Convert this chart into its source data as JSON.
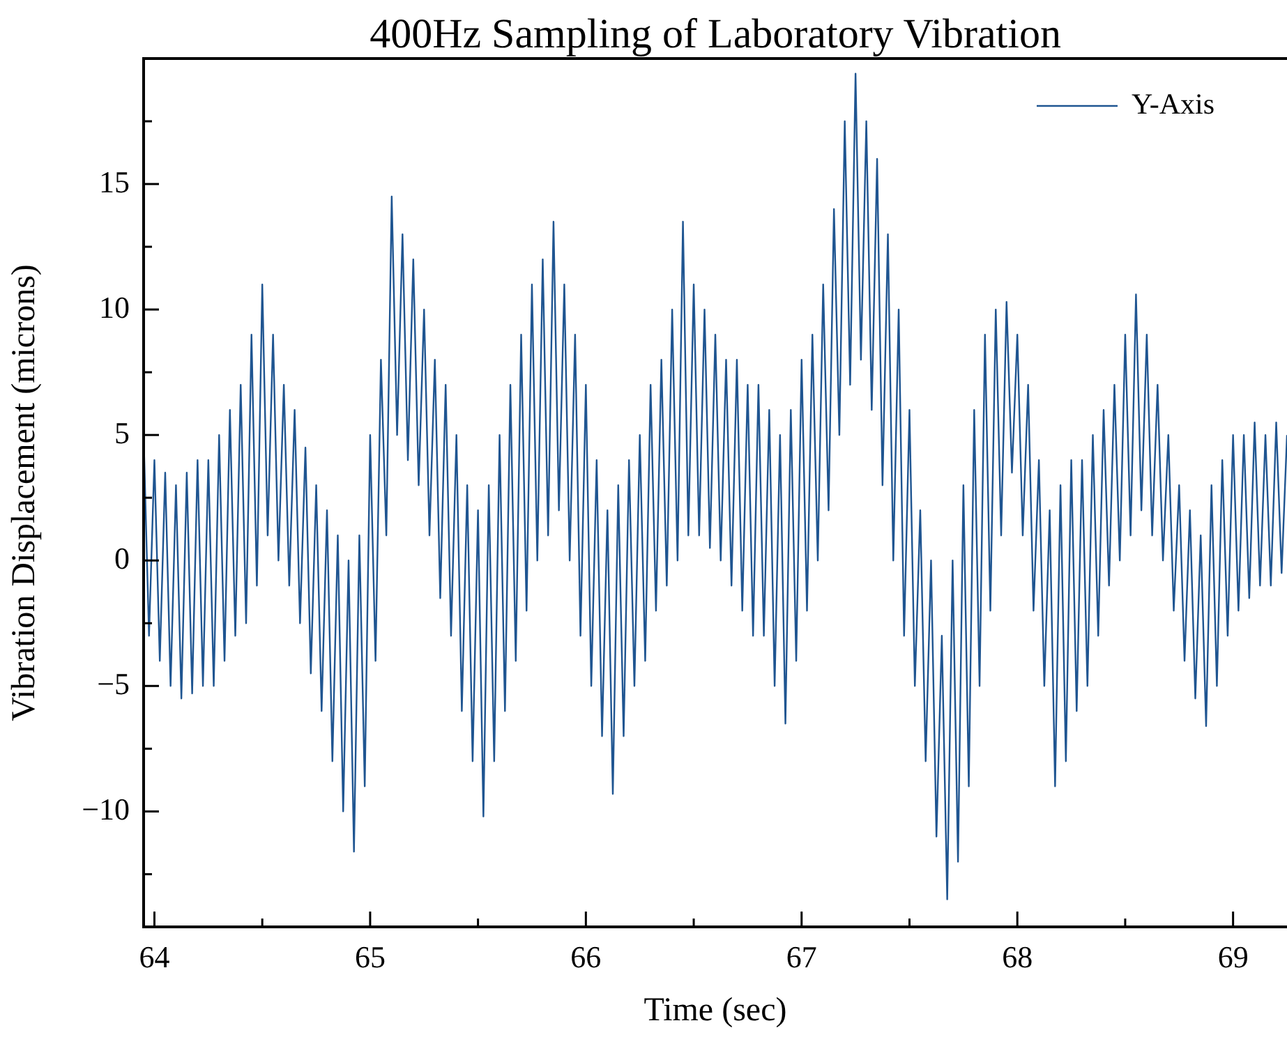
{
  "chart_data": {
    "type": "line",
    "title": "400Hz Sampling of Laboratory Vibration",
    "xlabel": "Time (sec)",
    "ylabel": "Vibration Displacement (microns)",
    "legend": "top right",
    "grid": false,
    "xlim": [
      63.95,
      69.25
    ],
    "xticks": [
      64,
      {
        "value": 64.5,
        "label": null
      },
      65,
      {
        "value": 65.5,
        "label": null
      },
      66,
      {
        "value": 66.5,
        "label": null
      },
      67,
      {
        "value": 67.5,
        "label": null
      },
      68,
      {
        "value": 68.5,
        "label": null
      },
      69
    ],
    "ylim": [
      -14.6,
      20
    ],
    "yticks": [
      {
        "value": -12.5,
        "label": null
      },
      -10,
      {
        "value": -7.5,
        "label": null
      },
      -5,
      {
        "value": -2.5,
        "label": null
      },
      0,
      {
        "value": 2.5,
        "label": null
      },
      5,
      {
        "value": 7.5,
        "label": null
      },
      10,
      {
        "value": 12.5,
        "label": null
      },
      15,
      {
        "value": 17.5,
        "label": null
      }
    ],
    "series": [
      {
        "name": "Y-Axis",
        "color": "#1f5591",
        "x": [
          63.95,
          63.975,
          64,
          64.025,
          64.05,
          64.075,
          64.1,
          64.125,
          64.15,
          64.175,
          64.2,
          64.225,
          64.25,
          64.275,
          64.3,
          64.325,
          64.35,
          64.375,
          64.4,
          64.425,
          64.45,
          64.475,
          64.5,
          64.525,
          64.55,
          64.575,
          64.6,
          64.625,
          64.65,
          64.675,
          64.7,
          64.725,
          64.75,
          64.775,
          64.8,
          64.825,
          64.85,
          64.875,
          64.9,
          64.925,
          64.95,
          64.975,
          65,
          65.025,
          65.05,
          65.075,
          65.1,
          65.125,
          65.15,
          65.175,
          65.2,
          65.225,
          65.25,
          65.275,
          65.3,
          65.325,
          65.35,
          65.375,
          65.4,
          65.425,
          65.45,
          65.475,
          65.5,
          65.525,
          65.55,
          65.575,
          65.6,
          65.625,
          65.65,
          65.675,
          65.7,
          65.725,
          65.75,
          65.775,
          65.8,
          65.825,
          65.85,
          65.875,
          65.9,
          65.925,
          65.95,
          65.975,
          66,
          66.025,
          66.05,
          66.075,
          66.1,
          66.125,
          66.15,
          66.175,
          66.2,
          66.225,
          66.25,
          66.275,
          66.3,
          66.325,
          66.35,
          66.375,
          66.4,
          66.425,
          66.45,
          66.475,
          66.5,
          66.525,
          66.55,
          66.575,
          66.6,
          66.625,
          66.65,
          66.675,
          66.7,
          66.725,
          66.75,
          66.775,
          66.8,
          66.825,
          66.85,
          66.875,
          66.9,
          66.925,
          66.95,
          66.975,
          67,
          67.025,
          67.05,
          67.075,
          67.1,
          67.125,
          67.15,
          67.175,
          67.2,
          67.225,
          67.25,
          67.275,
          67.3,
          67.325,
          67.35,
          67.375,
          67.4,
          67.425,
          67.45,
          67.475,
          67.5,
          67.525,
          67.55,
          67.575,
          67.6,
          67.625,
          67.65,
          67.675,
          67.7,
          67.725,
          67.75,
          67.775,
          67.8,
          67.825,
          67.85,
          67.875,
          67.9,
          67.925,
          67.95,
          67.975,
          68,
          68.025,
          68.05,
          68.075,
          68.1,
          68.125,
          68.15,
          68.175,
          68.2,
          68.225,
          68.25,
          68.275,
          68.3,
          68.325,
          68.35,
          68.375,
          68.4,
          68.425,
          68.45,
          68.475,
          68.5,
          68.525,
          68.55,
          68.575,
          68.6,
          68.625,
          68.65,
          68.675,
          68.7,
          68.725,
          68.75,
          68.775,
          68.8,
          68.825,
          68.85,
          68.875,
          68.9,
          68.925,
          68.95,
          68.975,
          69,
          69.025,
          69.05,
          69.075,
          69.1,
          69.125,
          69.15,
          69.175,
          69.2,
          69.225,
          69.25
        ],
        "values": [
          5,
          -3,
          4,
          -4,
          3.5,
          -5,
          3,
          -5.5,
          3.5,
          -5.3,
          4,
          -5,
          4,
          -5,
          5,
          -4,
          6,
          -3,
          7,
          -2.5,
          9,
          -1,
          11,
          1,
          9,
          0,
          7,
          -1,
          6,
          -2.5,
          4.5,
          -4.5,
          3,
          -6,
          2,
          -8,
          1,
          -10,
          0,
          -11.6,
          1,
          -9,
          5,
          -4,
          8,
          1,
          14.5,
          5,
          13,
          4,
          12,
          3,
          10,
          1,
          8,
          -1.5,
          7,
          -3,
          5,
          -6,
          3,
          -8,
          2,
          -10.2,
          3,
          -8,
          5,
          -6,
          7,
          -4,
          9,
          -2,
          11,
          0,
          12,
          1,
          13.5,
          2,
          11,
          0,
          9,
          -3,
          7,
          -5,
          4,
          -7,
          2,
          -9.3,
          3,
          -7,
          4,
          -5,
          5,
          -4,
          7,
          -2,
          8,
          -1,
          10,
          0,
          13.5,
          1,
          11,
          1,
          10,
          0.5,
          9,
          0,
          8,
          -1,
          8,
          -2,
          7,
          -3,
          7,
          -3,
          6,
          -5,
          5,
          -6.5,
          6,
          -4,
          8,
          -2,
          9,
          0,
          11,
          2,
          14,
          5,
          17.5,
          7,
          19.4,
          8,
          17.5,
          6,
          16,
          3,
          13,
          0,
          10,
          -3,
          6,
          -5,
          2,
          -8,
          0,
          -11,
          -3,
          -13.5,
          0,
          -12,
          3,
          -9,
          6,
          -5,
          9,
          -2,
          10,
          1,
          10.3,
          3.5,
          9,
          1,
          7,
          -2,
          4,
          -5,
          2,
          -9,
          3,
          -8,
          4,
          -6,
          4,
          -5,
          5,
          -3,
          6,
          -1,
          7,
          0,
          9,
          1,
          10.6,
          2,
          9,
          1,
          7,
          0,
          5,
          -2,
          3,
          -4,
          2,
          -5.5,
          1,
          -6.6,
          3,
          -5,
          4,
          -3,
          5,
          -2,
          5,
          -1.5,
          5.5,
          -1,
          5,
          -1,
          5.5,
          -0.5,
          5
        ]
      }
    ]
  }
}
